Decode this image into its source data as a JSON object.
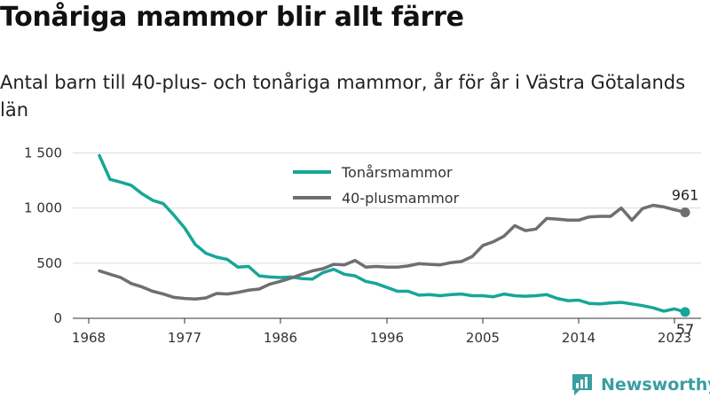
{
  "title": "Tonåriga mammor blir allt färre",
  "subtitle": "Antal barn till 40-plus- och tonåriga mammor, år för år i Västra Götalands län",
  "brand": {
    "name": "Newsworthy",
    "icon": "newsworthy-logo-icon",
    "color": "#3a9ea0"
  },
  "chart_data": {
    "type": "line",
    "xlim": [
      1966.5,
      2025.5
    ],
    "ylim": [
      0,
      1600
    ],
    "x_ticks": [
      {
        "value": 1968,
        "label": "1968"
      },
      {
        "value": 1977,
        "label": "1977"
      },
      {
        "value": 1986,
        "label": "1986"
      },
      {
        "value": 1996,
        "label": "1996"
      },
      {
        "value": 2005,
        "label": "2005"
      },
      {
        "value": 2014,
        "label": "2014"
      },
      {
        "value": 2023,
        "label": "2023"
      }
    ],
    "y_ticks": [
      {
        "value": 0,
        "label": "0"
      },
      {
        "value": 500,
        "label": "500"
      },
      {
        "value": 1000,
        "label": "1 000"
      },
      {
        "value": 1500,
        "label": "1 500"
      }
    ],
    "grid": true,
    "legend_position": "top-center",
    "series": [
      {
        "name": "Tonårsmammor",
        "color": "#17a697",
        "end_label": "57",
        "end_label_position": "below",
        "points": [
          [
            1969,
            1475
          ],
          [
            1970,
            1260
          ],
          [
            1971,
            1235
          ],
          [
            1972,
            1205
          ],
          [
            1973,
            1130
          ],
          [
            1974,
            1070
          ],
          [
            1975,
            1040
          ],
          [
            1976,
            935
          ],
          [
            1977,
            820
          ],
          [
            1978,
            670
          ],
          [
            1979,
            590
          ],
          [
            1980,
            555
          ],
          [
            1981,
            535
          ],
          [
            1982,
            465
          ],
          [
            1983,
            470
          ],
          [
            1984,
            385
          ],
          [
            1985,
            375
          ],
          [
            1986,
            370
          ],
          [
            1987,
            375
          ],
          [
            1988,
            360
          ],
          [
            1989,
            355
          ],
          [
            1990,
            415
          ],
          [
            1991,
            445
          ],
          [
            1992,
            400
          ],
          [
            1993,
            385
          ],
          [
            1994,
            335
          ],
          [
            1995,
            315
          ],
          [
            1996,
            280
          ],
          [
            1997,
            245
          ],
          [
            1998,
            245
          ],
          [
            1999,
            210
          ],
          [
            2000,
            215
          ],
          [
            2001,
            205
          ],
          [
            2002,
            215
          ],
          [
            2003,
            220
          ],
          [
            2004,
            205
          ],
          [
            2005,
            205
          ],
          [
            2006,
            195
          ],
          [
            2007,
            220
          ],
          [
            2008,
            205
          ],
          [
            2009,
            200
          ],
          [
            2010,
            205
          ],
          [
            2011,
            215
          ],
          [
            2012,
            180
          ],
          [
            2013,
            160
          ],
          [
            2014,
            165
          ],
          [
            2015,
            135
          ],
          [
            2016,
            130
          ],
          [
            2017,
            140
          ],
          [
            2018,
            145
          ],
          [
            2019,
            130
          ],
          [
            2020,
            115
          ],
          [
            2021,
            95
          ],
          [
            2022,
            65
          ],
          [
            2023,
            85
          ],
          [
            2024,
            57
          ]
        ]
      },
      {
        "name": "40-plusmammor",
        "color": "#6e6e73",
        "end_label": "961",
        "end_label_position": "above",
        "points": [
          [
            1969,
            430
          ],
          [
            1970,
            400
          ],
          [
            1971,
            370
          ],
          [
            1972,
            315
          ],
          [
            1973,
            285
          ],
          [
            1974,
            245
          ],
          [
            1975,
            220
          ],
          [
            1976,
            190
          ],
          [
            1977,
            180
          ],
          [
            1978,
            175
          ],
          [
            1979,
            185
          ],
          [
            1980,
            225
          ],
          [
            1981,
            220
          ],
          [
            1982,
            235
          ],
          [
            1983,
            255
          ],
          [
            1984,
            265
          ],
          [
            1985,
            310
          ],
          [
            1986,
            335
          ],
          [
            1987,
            365
          ],
          [
            1988,
            400
          ],
          [
            1989,
            430
          ],
          [
            1990,
            450
          ],
          [
            1991,
            490
          ],
          [
            1992,
            485
          ],
          [
            1993,
            525
          ],
          [
            1994,
            465
          ],
          [
            1995,
            470
          ],
          [
            1996,
            465
          ],
          [
            1997,
            465
          ],
          [
            1998,
            475
          ],
          [
            1999,
            495
          ],
          [
            2000,
            490
          ],
          [
            2001,
            485
          ],
          [
            2002,
            505
          ],
          [
            2003,
            515
          ],
          [
            2004,
            560
          ],
          [
            2005,
            660
          ],
          [
            2006,
            695
          ],
          [
            2007,
            745
          ],
          [
            2008,
            840
          ],
          [
            2009,
            795
          ],
          [
            2010,
            810
          ],
          [
            2011,
            905
          ],
          [
            2012,
            900
          ],
          [
            2013,
            890
          ],
          [
            2014,
            890
          ],
          [
            2015,
            920
          ],
          [
            2016,
            925
          ],
          [
            2017,
            925
          ],
          [
            2018,
            1000
          ],
          [
            2019,
            890
          ],
          [
            2020,
            995
          ],
          [
            2021,
            1025
          ],
          [
            2022,
            1010
          ],
          [
            2023,
            985
          ],
          [
            2024,
            961
          ]
        ]
      }
    ]
  }
}
